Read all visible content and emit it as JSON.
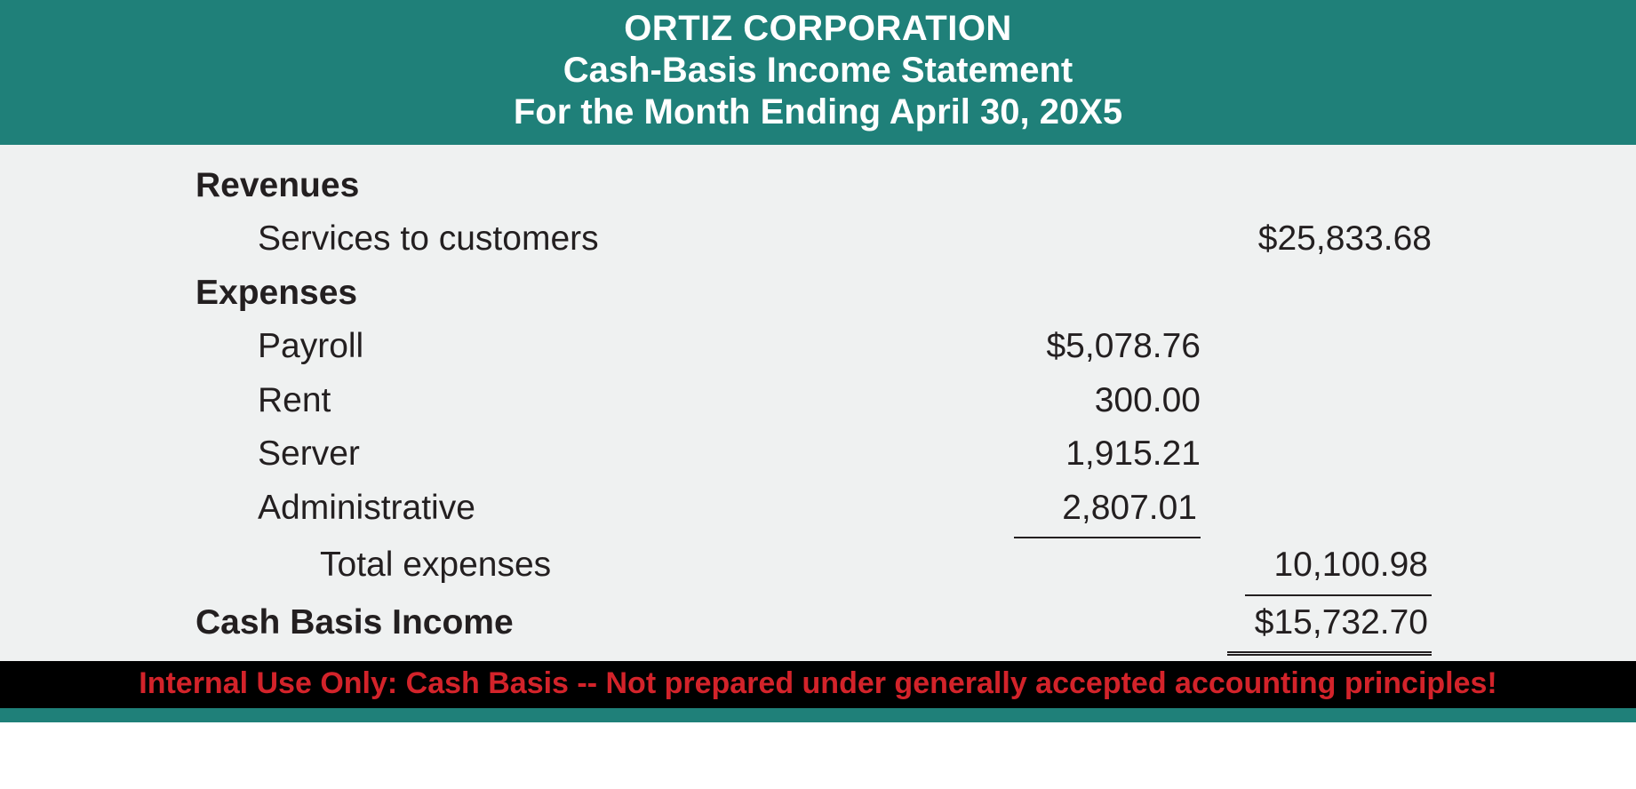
{
  "colors": {
    "header_bg": "#1f8079",
    "header_text": "#ffffff",
    "body_bg": "#eff1f1",
    "body_text": "#231f20",
    "footer_bg": "#000000",
    "footer_text": "#d3232a",
    "rule_color": "#231f20"
  },
  "typography": {
    "header_fontsize_pt": 30,
    "body_fontsize_pt": 29,
    "footer_fontsize_pt": 25,
    "font_family": "Myriad Pro / sans-serif"
  },
  "header": {
    "company": "ORTIZ CORPORATION",
    "title": "Cash-Basis Income Statement",
    "period": "For the Month Ending April 30, 20X5"
  },
  "sections": {
    "revenues": {
      "heading": "Revenues",
      "items": [
        {
          "label": "Services to customers",
          "value": "$25,833.68",
          "column": "total"
        }
      ]
    },
    "expenses": {
      "heading": "Expenses",
      "items": [
        {
          "label": "Payroll",
          "value": "$5,078.76",
          "column": "sub"
        },
        {
          "label": "Rent",
          "value": "300.00",
          "column": "sub"
        },
        {
          "label": "Server",
          "value": "1,915.21",
          "column": "sub"
        },
        {
          "label": "Administrative",
          "value": "2,807.01",
          "column": "sub",
          "underline": "single"
        }
      ],
      "total": {
        "label": "Total expenses",
        "value": "10,100.98",
        "column": "total",
        "underline": "single"
      }
    },
    "net": {
      "label": "Cash Basis Income",
      "value": "$15,732.70",
      "column": "total",
      "underline": "double"
    }
  },
  "footer": {
    "text": "Internal Use Only: Cash Basis -- Not prepared under generally accepted accounting principles!"
  }
}
